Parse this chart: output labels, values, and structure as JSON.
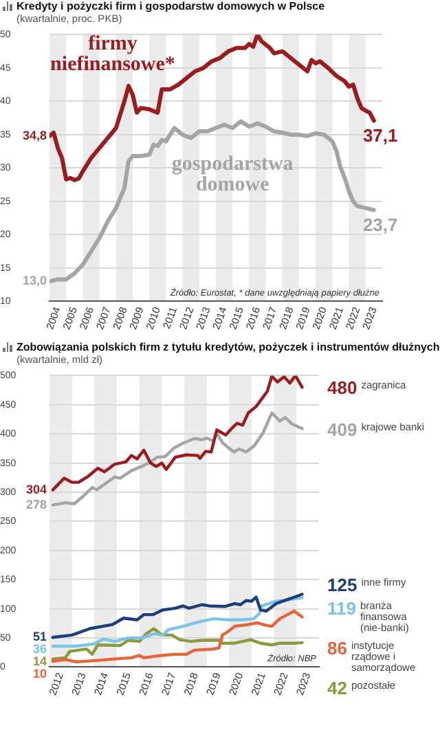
{
  "chart_data": [
    {
      "type": "line",
      "title": "Kredyty i pożyczki firm i gospodarstw domowych w Polsce",
      "subtitle": "(kwartalnie, proc. PKB)",
      "xlim": [
        2004,
        2024
      ],
      "ylim": [
        10,
        50
      ],
      "yticks": [
        10,
        15,
        20,
        25,
        30,
        35,
        40,
        45,
        50
      ],
      "xticks": [
        {
          "value": 2004.5,
          "label": "2004"
        },
        {
          "value": 2005.5,
          "label": "2005"
        },
        {
          "value": 2006.5,
          "label": "2006"
        },
        {
          "value": 2007.5,
          "label": "2007"
        },
        {
          "value": 2008.5,
          "label": "2008"
        },
        {
          "value": 2009.5,
          "label": "2009"
        },
        {
          "value": 2010.5,
          "label": "2010"
        },
        {
          "value": 2011.5,
          "label": "2011"
        },
        {
          "value": 2012.5,
          "label": "2012"
        },
        {
          "value": 2013.5,
          "label": "2013"
        },
        {
          "value": 2014.5,
          "label": "2014"
        },
        {
          "value": 2015.5,
          "label": "2015"
        },
        {
          "value": 2016.5,
          "label": "2016"
        },
        {
          "value": 2017.5,
          "label": "2017"
        },
        {
          "value": 2018.5,
          "label": "2018"
        },
        {
          "value": 2019.5,
          "label": "2019"
        },
        {
          "value": 2020.5,
          "label": "2020"
        },
        {
          "value": 2021.5,
          "label": "2021"
        },
        {
          "value": 2022.5,
          "label": "2022"
        },
        {
          "value": 2023.5,
          "label": "2023"
        }
      ],
      "grid": "y",
      "legend": false,
      "bands": [
        {
          "axis": "x",
          "from": 2004,
          "to": 2005,
          "color": "#ebebeb"
        },
        {
          "axis": "x",
          "from": 2006,
          "to": 2007,
          "color": "#ebebeb"
        },
        {
          "axis": "x",
          "from": 2008,
          "to": 2009,
          "color": "#ebebeb"
        },
        {
          "axis": "x",
          "from": 2010,
          "to": 2011,
          "color": "#ebebeb"
        },
        {
          "axis": "x",
          "from": 2012,
          "to": 2013,
          "color": "#ebebeb"
        },
        {
          "axis": "x",
          "from": 2014,
          "to": 2015,
          "color": "#ebebeb"
        },
        {
          "axis": "x",
          "from": 2016,
          "to": 2017,
          "color": "#ebebeb"
        },
        {
          "axis": "x",
          "from": 2018,
          "to": 2019,
          "color": "#ebebeb"
        },
        {
          "axis": "x",
          "from": 2020,
          "to": 2021,
          "color": "#ebebeb"
        },
        {
          "axis": "x",
          "from": 2022,
          "to": 2023,
          "color": "#ebebeb"
        }
      ],
      "annotations": [
        "Źródło: Eurostat, * dane uwzględniają papiery dłużne"
      ],
      "series": [
        {
          "name": "firmy niefinansowe*",
          "color": "#9b1c1f",
          "x": [
            2004,
            2004.25,
            2004.5,
            2004.75,
            2005,
            2005.25,
            2005.5,
            2005.75,
            2006,
            2006.5,
            2007,
            2007.5,
            2008,
            2008.5,
            2008.75,
            2009,
            2009.25,
            2009.5,
            2010,
            2010.5,
            2010.75,
            2011.25,
            2011.75,
            2012.25,
            2012.75,
            2013.25,
            2013.75,
            2014.25,
            2014.75,
            2015.25,
            2015.75,
            2016,
            2016.25,
            2016.5,
            2016.75,
            2017.25,
            2017.5,
            2018,
            2018.5,
            2019,
            2019.5,
            2019.75,
            2020,
            2020.25,
            2020.75,
            2021.25,
            2021.75,
            2022,
            2022.25,
            2022.5,
            2022.75,
            2023,
            2023.25,
            2023.5
          ],
          "values": [
            34.8,
            35.3,
            33,
            31.5,
            28.3,
            28.5,
            28.2,
            28.4,
            29.5,
            31.5,
            33,
            34.5,
            36,
            40,
            42.3,
            41,
            38.3,
            39,
            38.8,
            38.3,
            41.8,
            41.8,
            42.5,
            43.5,
            44.5,
            45,
            46,
            46.5,
            47.5,
            48,
            48,
            48.6,
            48.2,
            50,
            49,
            48,
            47.2,
            47.5,
            46.5,
            45.5,
            44.5,
            46.2,
            45.7,
            46,
            45,
            43.8,
            43,
            42.2,
            42.5,
            40.5,
            39,
            38.6,
            38.3,
            37.1
          ],
          "value_labels": [
            "34,8",
            null,
            null,
            null,
            null,
            null,
            null,
            null,
            null,
            null,
            null,
            null,
            null,
            null,
            null,
            null,
            null,
            null,
            null,
            null,
            null,
            null,
            null,
            null,
            null,
            null,
            null,
            null,
            null,
            null,
            null,
            null,
            null,
            null,
            null,
            null,
            null,
            null,
            null,
            null,
            null,
            null,
            null,
            null,
            null,
            null,
            null,
            null,
            null,
            null,
            null,
            null,
            null,
            "37,1"
          ]
        },
        {
          "name": "gospodarstwa domowe",
          "color": "#a3a5a8",
          "x": [
            2004,
            2004.5,
            2005,
            2005.5,
            2006,
            2006.5,
            2007,
            2007.5,
            2008,
            2008.5,
            2008.75,
            2009,
            2009.5,
            2010,
            2010.25,
            2010.5,
            2010.75,
            2011,
            2011.5,
            2012,
            2012.5,
            2013,
            2013.5,
            2014,
            2014.5,
            2015,
            2015.5,
            2016,
            2016.5,
            2017,
            2017.5,
            2018,
            2018.5,
            2019,
            2019.5,
            2020,
            2020.5,
            2021,
            2021.25,
            2021.5,
            2021.75,
            2022,
            2022.25,
            2022.5,
            2023,
            2023.5
          ],
          "values": [
            13.0,
            13.3,
            13.3,
            14.2,
            15.5,
            17.5,
            19.5,
            22,
            24,
            27,
            31,
            31.8,
            31.8,
            32,
            33.5,
            33.3,
            34.2,
            34,
            36,
            35,
            34.5,
            35.5,
            35.5,
            36,
            36.5,
            36,
            37,
            36.2,
            36.7,
            36.2,
            35.5,
            35.3,
            35,
            35,
            34.8,
            35.2,
            35,
            34,
            32.5,
            30,
            28.5,
            26.5,
            25,
            24.3,
            24,
            23.7
          ],
          "value_labels": [
            "13,0",
            null,
            null,
            null,
            null,
            null,
            null,
            null,
            null,
            null,
            null,
            null,
            null,
            null,
            null,
            null,
            null,
            null,
            null,
            null,
            null,
            null,
            null,
            null,
            null,
            null,
            null,
            null,
            null,
            null,
            null,
            null,
            null,
            null,
            null,
            null,
            null,
            null,
            null,
            null,
            null,
            null,
            null,
            null,
            null,
            "23,7"
          ]
        }
      ]
    },
    {
      "type": "line",
      "title": "Zobowiązania polskich firm z tytułu kredytów, pożyczek i instrumentów dłużnych",
      "subtitle": "(kwartalnie, mld zł)",
      "xlim": [
        2012,
        2024
      ],
      "ylim": [
        0,
        500
      ],
      "yticks": [
        0,
        50,
        100,
        150,
        200,
        250,
        300,
        350,
        400,
        450,
        500
      ],
      "xticks": [
        {
          "value": 2012.5,
          "label": "2012"
        },
        {
          "value": 2013.5,
          "label": "2013"
        },
        {
          "value": 2014.5,
          "label": "2014"
        },
        {
          "value": 2015.5,
          "label": "2015"
        },
        {
          "value": 2016.5,
          "label": "2016"
        },
        {
          "value": 2017.5,
          "label": "2017"
        },
        {
          "value": 2018.5,
          "label": "2018"
        },
        {
          "value": 2019.5,
          "label": "2019"
        },
        {
          "value": 2020.5,
          "label": "2020"
        },
        {
          "value": 2021.5,
          "label": "2021"
        },
        {
          "value": 2022.5,
          "label": "2022"
        },
        {
          "value": 2023.5,
          "label": "2023"
        }
      ],
      "grid": "y",
      "legend": false,
      "bands": [
        {
          "axis": "x",
          "from": 2012,
          "to": 2013,
          "color": "#ebebeb"
        },
        {
          "axis": "x",
          "from": 2014,
          "to": 2015,
          "color": "#ebebeb"
        },
        {
          "axis": "x",
          "from": 2016,
          "to": 2017,
          "color": "#ebebeb"
        },
        {
          "axis": "x",
          "from": 2018,
          "to": 2019,
          "color": "#ebebeb"
        },
        {
          "axis": "x",
          "from": 2020,
          "to": 2021,
          "color": "#ebebeb"
        },
        {
          "axis": "x",
          "from": 2022,
          "to": 2023,
          "color": "#ebebeb"
        }
      ],
      "annotations": [
        "Źródło: NBP"
      ],
      "series": [
        {
          "name": "zagranica",
          "color": "#9b1c1f",
          "x": [
            2012.15,
            2012.65,
            2013,
            2013.3,
            2013.75,
            2014.15,
            2014.45,
            2014.9,
            2015.4,
            2015.65,
            2015.9,
            2016.2,
            2016.5,
            2016.75,
            2017,
            2017.2,
            2017.6,
            2018.1,
            2018.6,
            2018.7,
            2018.95,
            2019.2,
            2019.45,
            2019.85,
            2020.1,
            2020.35,
            2020.6,
            2020.85,
            2021.2,
            2021.45,
            2021.7,
            2021.9,
            2022.15,
            2022.45,
            2022.7,
            2022.95,
            2023.25
          ],
          "values": [
            304,
            324,
            317,
            317,
            328,
            341,
            335,
            348,
            352,
            363,
            357,
            372,
            350,
            344,
            350,
            339,
            360,
            364,
            363,
            358,
            370,
            369,
            407,
            398,
            409,
            418,
            415,
            436,
            447,
            460,
            473,
            499,
            489,
            498,
            487,
            500,
            480
          ],
          "value_labels": [
            "304",
            null,
            null,
            null,
            null,
            null,
            null,
            null,
            null,
            null,
            null,
            null,
            null,
            null,
            null,
            null,
            null,
            null,
            null,
            null,
            null,
            null,
            null,
            null,
            null,
            null,
            null,
            null,
            null,
            null,
            null,
            null,
            null,
            null,
            null,
            null,
            "480"
          ]
        },
        {
          "name": "krajowe banki",
          "color": "#a3a5a8",
          "x": [
            2012.15,
            2012.7,
            2013.1,
            2013.5,
            2013.9,
            2014.1,
            2014.5,
            2014.9,
            2015.15,
            2015.65,
            2016.15,
            2016.5,
            2016.8,
            2017.15,
            2017.55,
            2017.95,
            2018.45,
            2018.8,
            2019,
            2019.3,
            2019.45,
            2019.7,
            2020.2,
            2020.45,
            2020.75,
            2021.1,
            2021.5,
            2021.9,
            2022.25,
            2022.5,
            2022.8,
            2023.25
          ],
          "values": [
            278,
            282,
            280,
            293,
            308,
            304,
            315,
            326,
            324,
            337,
            345,
            352,
            360,
            361,
            376,
            384,
            392,
            390,
            393,
            388,
            401,
            385,
            369,
            374,
            369,
            379,
            401,
            436,
            422,
            428,
            417,
            409
          ],
          "value_labels": [
            "278",
            null,
            null,
            null,
            null,
            null,
            null,
            null,
            null,
            null,
            null,
            null,
            null,
            null,
            null,
            null,
            null,
            null,
            null,
            null,
            null,
            null,
            null,
            null,
            null,
            null,
            null,
            null,
            null,
            null,
            null,
            "409"
          ]
        },
        {
          "name": "inne firmy",
          "color": "#1b3f7c",
          "x": [
            2012.15,
            2013,
            2013.8,
            2014.8,
            2015.3,
            2015.9,
            2016.2,
            2016.6,
            2017.05,
            2017.6,
            2017.95,
            2018.2,
            2018.8,
            2019.1,
            2019.8,
            2020.25,
            2020.5,
            2020.75,
            2021,
            2021.2,
            2021.4,
            2021.65,
            2022.1,
            2022.6,
            2022.9,
            2023.25
          ],
          "values": [
            51,
            55,
            66,
            73,
            84,
            81,
            90,
            90,
            98,
            101,
            105,
            101,
            107,
            105,
            104,
            109,
            107,
            114,
            113,
            120,
            98,
            96,
            109,
            116,
            120,
            125
          ],
          "value_labels": [
            "51",
            null,
            null,
            null,
            null,
            null,
            null,
            null,
            null,
            null,
            null,
            null,
            null,
            null,
            null,
            null,
            null,
            null,
            null,
            null,
            null,
            null,
            null,
            null,
            null,
            "125"
          ]
        },
        {
          "name": "branża finansowa (nie-banki)",
          "color": "#7cc3e8",
          "x": [
            2012.15,
            2013.2,
            2014,
            2014.4,
            2014.9,
            2015.5,
            2016.15,
            2016.65,
            2017.05,
            2017.3,
            2017.95,
            2018.6,
            2019.3,
            2019.95,
            2020.6,
            2021.1,
            2021.35,
            2021.45,
            2022.1,
            2022.75,
            2023.25
          ],
          "values": [
            36,
            36,
            40,
            48,
            44,
            50,
            50,
            57,
            55,
            64,
            70,
            77,
            83,
            81,
            81,
            83,
            92,
            105,
            113,
            116,
            119
          ],
          "value_labels": [
            "36",
            null,
            null,
            null,
            null,
            null,
            null,
            null,
            null,
            null,
            null,
            null,
            null,
            null,
            null,
            null,
            null,
            null,
            null,
            null,
            "119"
          ]
        },
        {
          "name": "instytucje rządowe i samorządowe",
          "color": "#e8653a",
          "x": [
            2012.15,
            2012.7,
            2013.2,
            2014,
            2014.9,
            2015.65,
            2016,
            2016.2,
            2017,
            2017.6,
            2018.1,
            2018.45,
            2019.3,
            2019.55,
            2019.7,
            2019.95,
            2020.25,
            2020.85,
            2021.25,
            2021.6,
            2021.9,
            2022.25,
            2022.9,
            2023.25
          ],
          "values": [
            10,
            13,
            9,
            11,
            14,
            16,
            20,
            16,
            20,
            22,
            22,
            29,
            31,
            33,
            55,
            61,
            70,
            73,
            76,
            72,
            70,
            83,
            96,
            86
          ],
          "value_labels": [
            "10",
            null,
            null,
            null,
            null,
            null,
            null,
            null,
            null,
            null,
            null,
            null,
            null,
            null,
            null,
            null,
            null,
            null,
            null,
            null,
            null,
            null,
            null,
            "86"
          ]
        },
        {
          "name": "pozostałe",
          "color": "#8a9a3c",
          "x": [
            2012.15,
            2012.7,
            2012.9,
            2013.65,
            2013.9,
            2014.15,
            2015.15,
            2015.5,
            2016,
            2016.3,
            2016.65,
            2017,
            2017.45,
            2017.8,
            2018.3,
            2018.8,
            2019.55,
            2019.7,
            2020.25,
            2020.95,
            2021.4,
            2021.9,
            2022.25,
            2022.9,
            2023.25
          ],
          "values": [
            14,
            16,
            27,
            31,
            22,
            38,
            37,
            46,
            44,
            57,
            66,
            55,
            55,
            47,
            44,
            46,
            46,
            41,
            41,
            47,
            41,
            38,
            41,
            41,
            42
          ],
          "value_labels": [
            "14",
            null,
            null,
            null,
            null,
            null,
            null,
            null,
            null,
            null,
            null,
            null,
            null,
            null,
            null,
            null,
            null,
            null,
            null,
            null,
            null,
            null,
            null,
            null,
            "42"
          ]
        }
      ]
    }
  ]
}
